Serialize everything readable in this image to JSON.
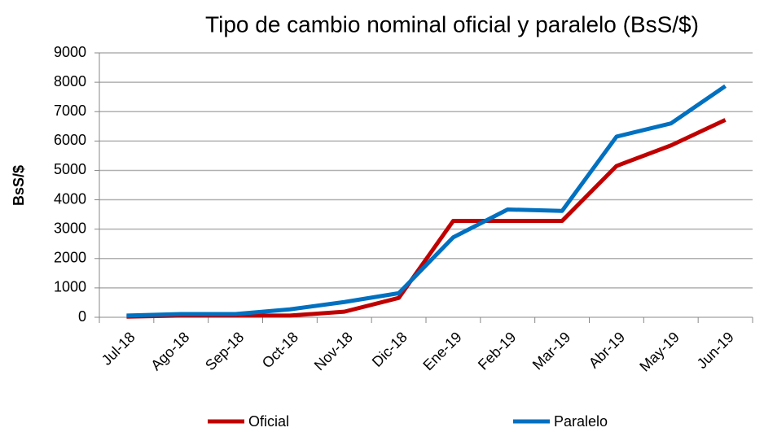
{
  "chart_data": {
    "type": "line",
    "title": "Tipo de cambio nominal oficial y paralelo (BsS/$)",
    "y_label": "BsS/$",
    "categories": [
      "Jul-18",
      "Ago-18",
      "Sep-18",
      "Oct-18",
      "Nov-18",
      "Dic-18",
      "Ene-19",
      "Feb-19",
      "Mar-19",
      "Abr-19",
      "May-19",
      "Jun-19"
    ],
    "series": [
      {
        "name": "Oficial",
        "color": "#c00000",
        "values": [
          20,
          60,
          60,
          60,
          190,
          660,
          3280,
          3280,
          3280,
          5150,
          5850,
          6720
        ]
      },
      {
        "name": "Paralelo",
        "color": "#0070c0",
        "values": [
          60,
          110,
          110,
          270,
          520,
          820,
          2720,
          3670,
          3620,
          6150,
          6600,
          7870
        ]
      }
    ],
    "ylim": [
      0,
      9000
    ],
    "yticks": [
      0,
      1000,
      2000,
      3000,
      4000,
      5000,
      6000,
      7000,
      8000,
      9000
    ],
    "grid": true,
    "legend": "bottom"
  }
}
